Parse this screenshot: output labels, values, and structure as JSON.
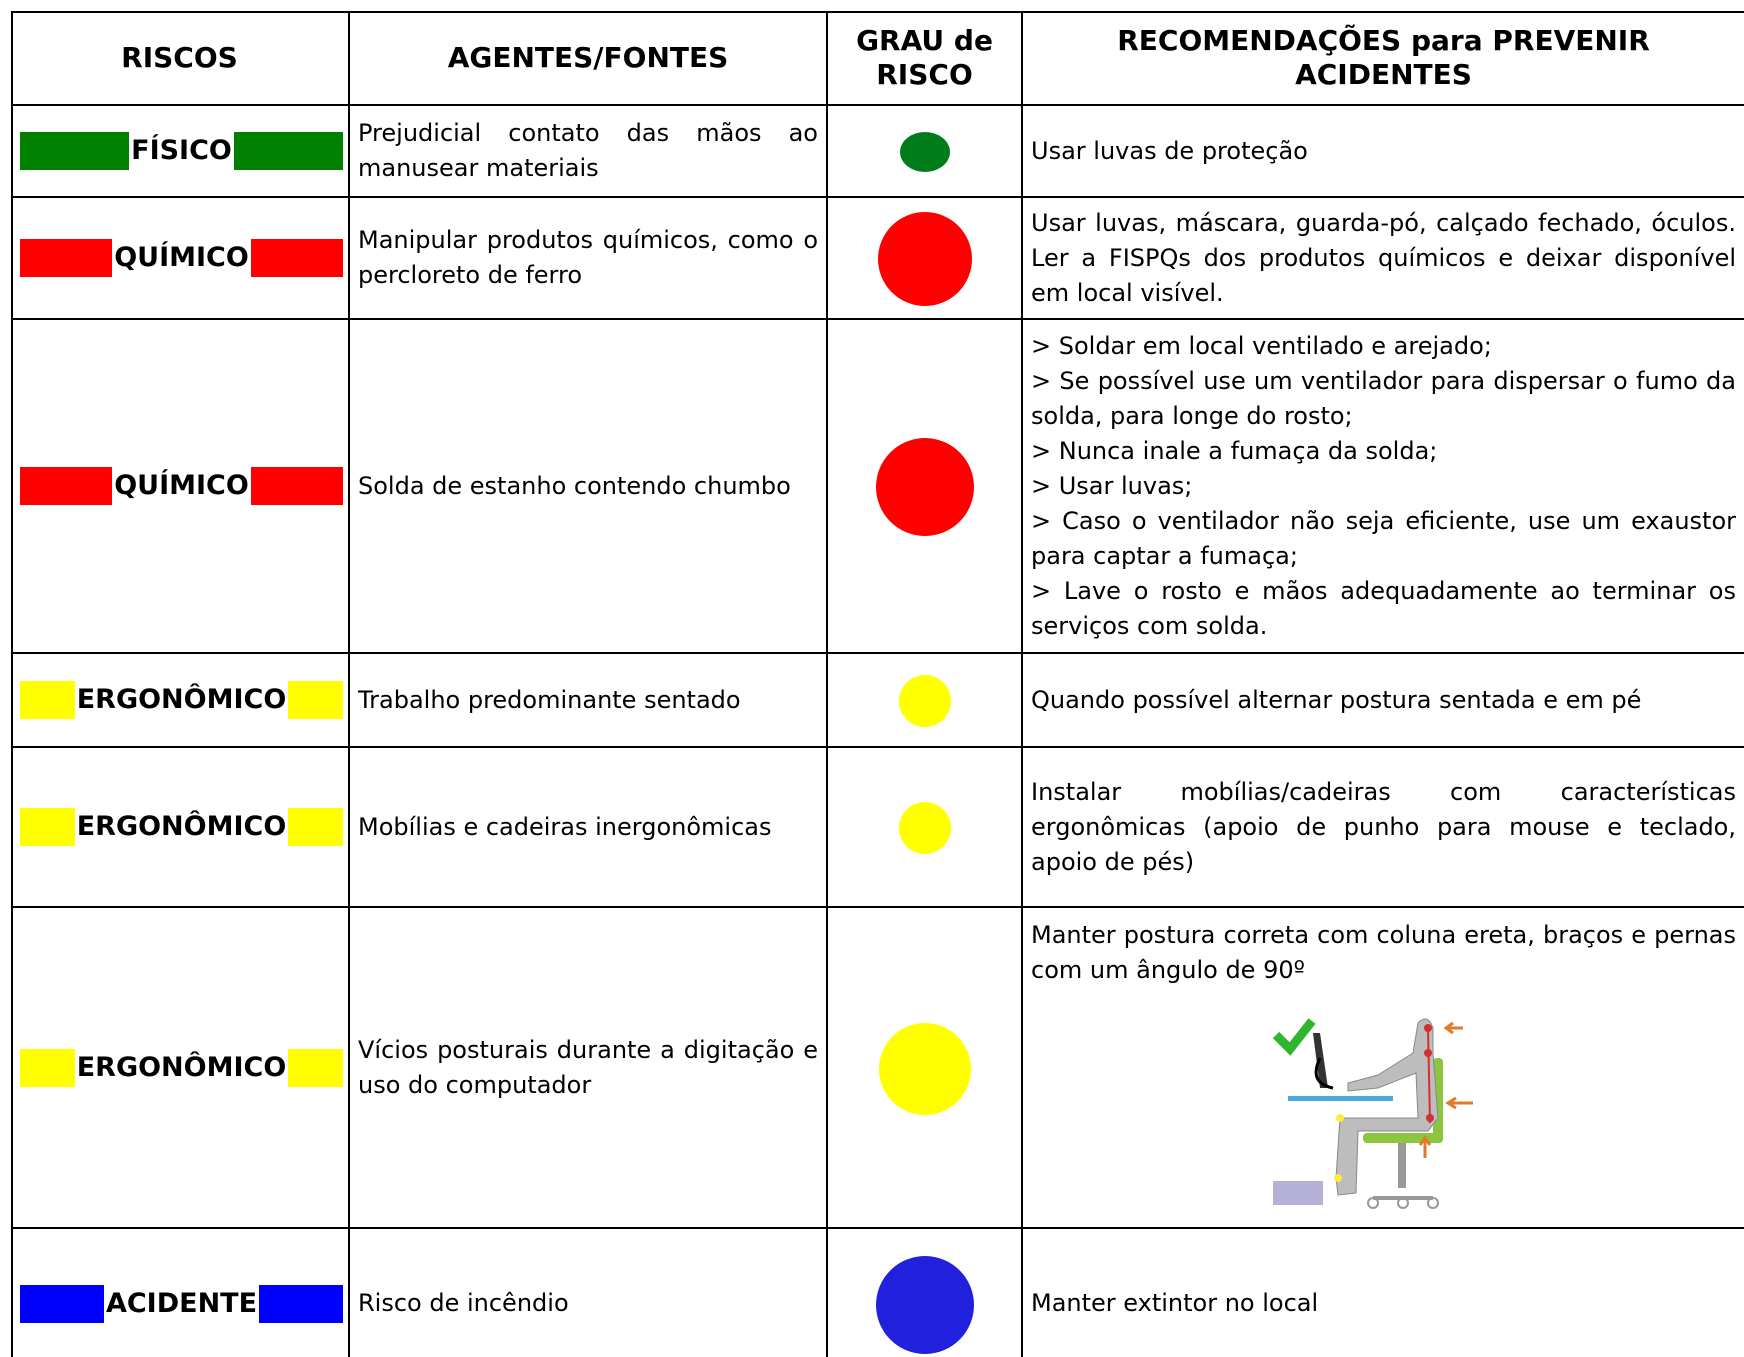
{
  "table": {
    "headers": [
      "RISCOS",
      "AGENTES/FONTES",
      "GRAU de RISCO",
      "RECOMENDAÇÕES para PREVENIR ACIDENTES"
    ],
    "rows": [
      {
        "risk": "FÍSICO",
        "agent": "Prejudicial contato das mãos ao manusear materiais",
        "recommendation": [
          "Usar luvas de proteção"
        ]
      },
      {
        "risk": "QUÍMICO",
        "agent": "Manipular produtos químicos, como o percloreto de ferro",
        "recommendation": [
          "Usar luvas, máscara, guarda-pó, calçado fechado, óculos. Ler a FISPQs dos produtos químicos e deixar disponível em local visível."
        ]
      },
      {
        "risk": "QUÍMICO",
        "agent": "Solda de estanho contendo chumbo",
        "recommendation": [
          "> Soldar em local ventilado e arejado;",
          "> Se possível use um ventilador para dispersar o fumo da solda, para longe do rosto;",
          "> Nunca inale a fumaça da solda;",
          "> Usar luvas;",
          "> Caso o ventilador não seja eficiente, use um exaustor para captar a fumaça;",
          "> Lave o rosto e mãos adequadamente ao terminar os serviços com solda."
        ]
      },
      {
        "risk": "ERGONÔMICO",
        "agent": "Trabalho predominante sentado",
        "recommendation": [
          "Quando possível alternar postura sentada e em pé"
        ]
      },
      {
        "risk": "ERGONÔMICO",
        "agent": "Mobílias e cadeiras inergonômicas",
        "recommendation": [
          "Instalar mobílias/cadeiras com características ergonômicas (apoio de punho para mouse e teclado, apoio de pés)"
        ]
      },
      {
        "risk": "ERGONÔMICO",
        "agent": "Vícios posturais durante a digitação e uso do computador",
        "recommendation": [
          "Manter postura correta com coluna ereta, braços e pernas com um ângulo de 90º"
        ]
      },
      {
        "risk": "ACIDENTE",
        "agent": "Risco de incêndio",
        "recommendation": [
          "Manter extintor no local"
        ]
      }
    ]
  }
}
